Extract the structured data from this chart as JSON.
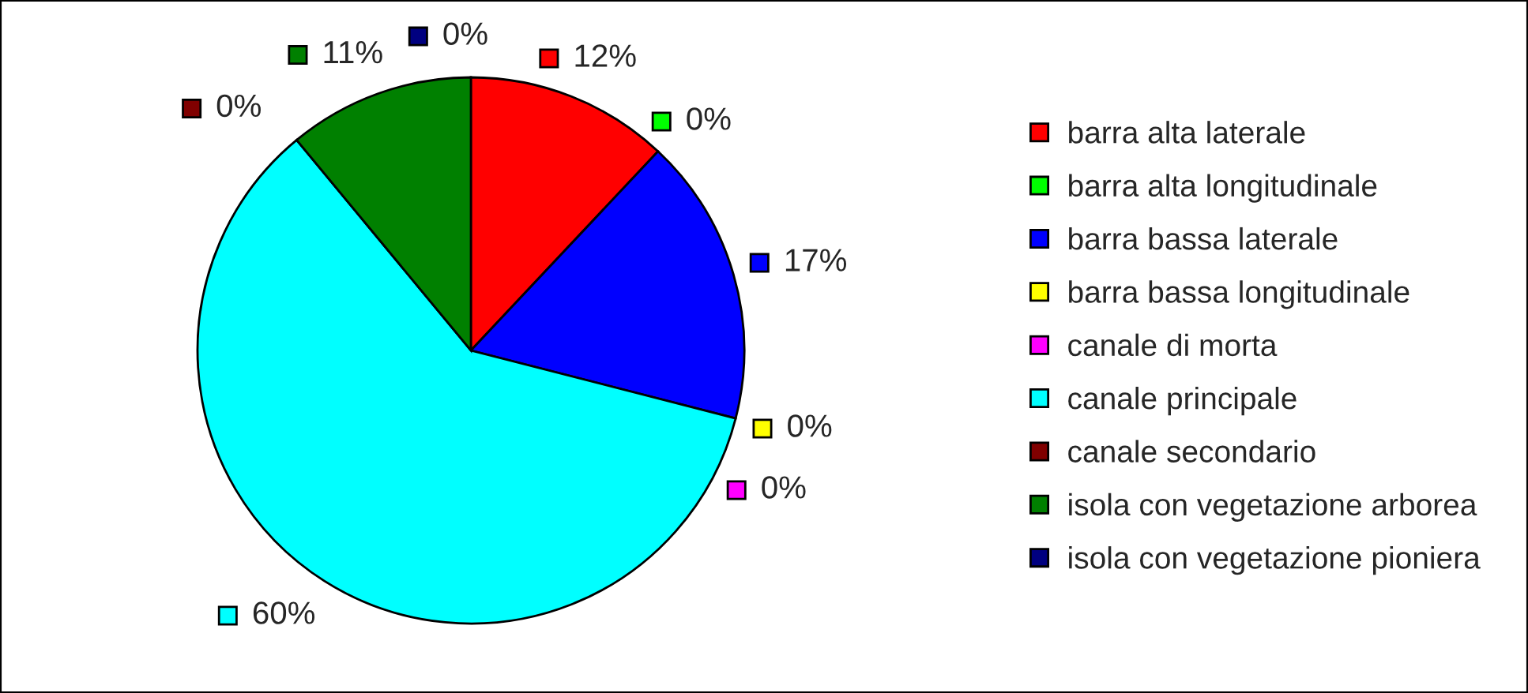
{
  "chart_data": {
    "type": "pie",
    "categories": [
      "barra alta laterale",
      "barra alta longitudinale",
      "barra bassa laterale",
      "barra bassa longitudinale",
      "canale di morta",
      "canale principale",
      "canale secondario",
      "isola con vegetazione arborea",
      "isola con vegetazione pioniera"
    ],
    "values": [
      12,
      0,
      17,
      0,
      0,
      60,
      0,
      11,
      0
    ],
    "colors": [
      "#ff0000",
      "#00ff00",
      "#0000ff",
      "#ffff00",
      "#ff00ff",
      "#00ffff",
      "#800000",
      "#008000",
      "#000080"
    ],
    "value_labels": [
      "12%",
      "0%",
      "17%",
      "0%",
      "0%",
      "60%",
      "0%",
      "11%",
      "0%"
    ],
    "legend": "right"
  }
}
